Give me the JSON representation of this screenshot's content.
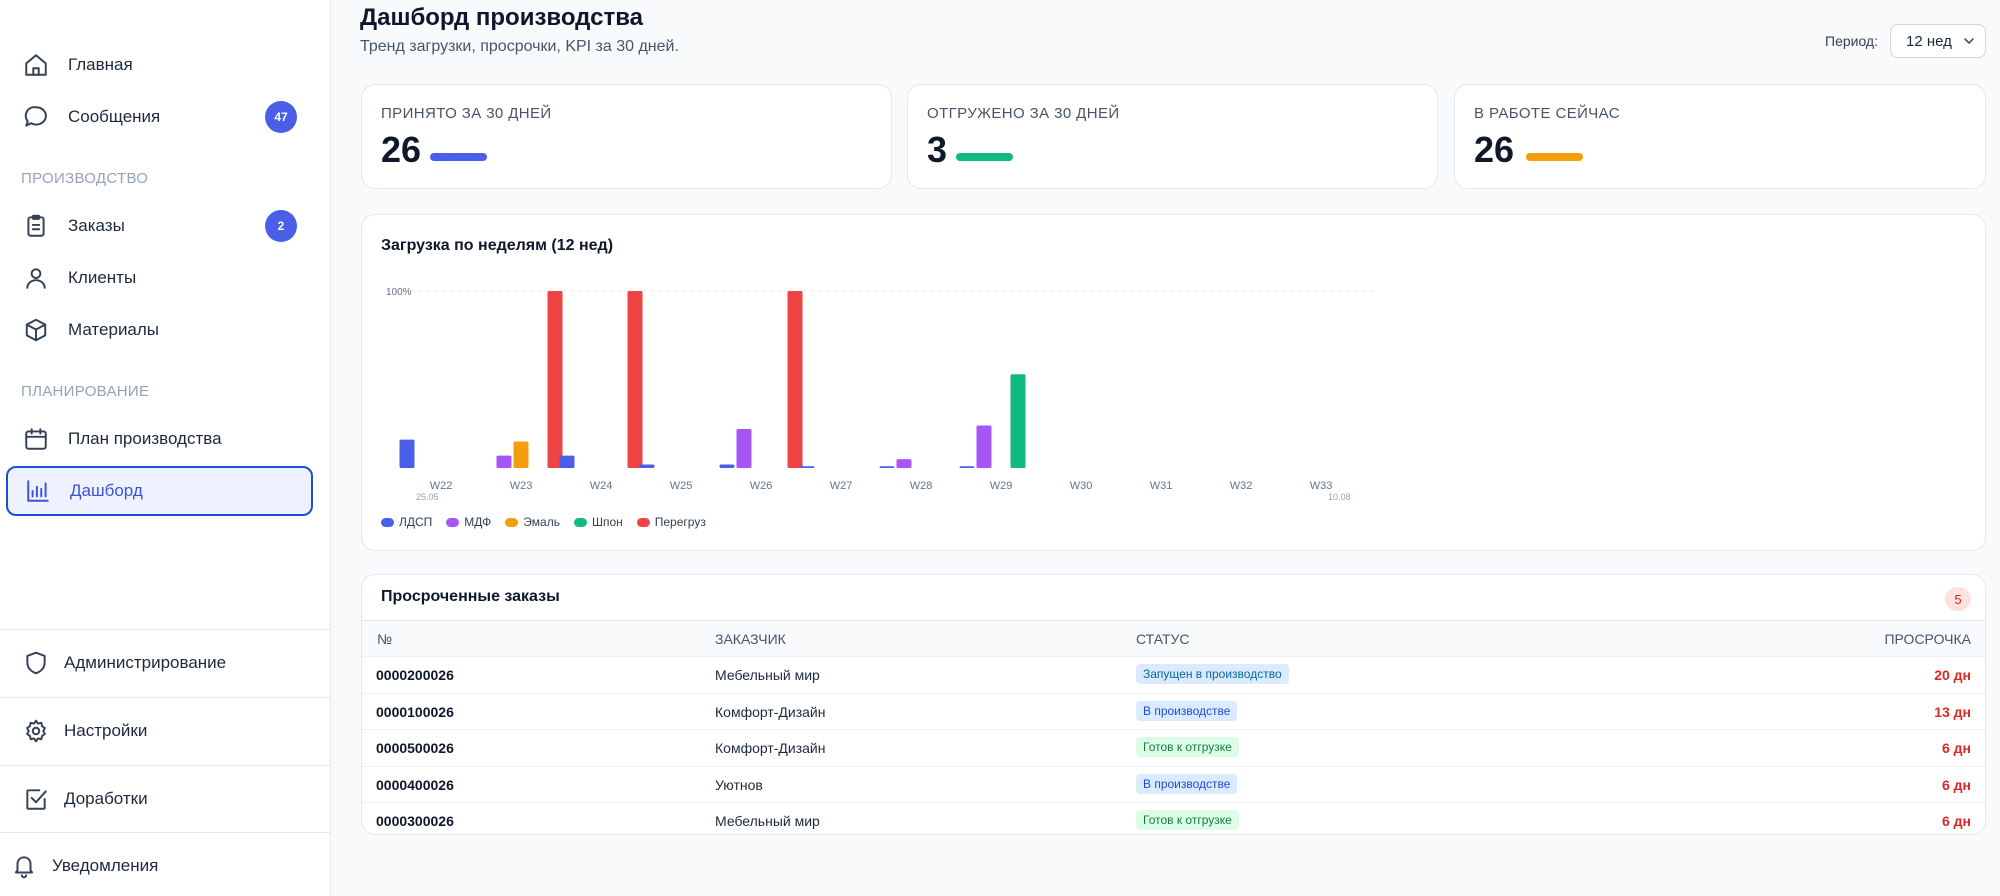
{
  "sidebar": {
    "top_items": [
      {
        "label": "Главная",
        "icon": "home-icon"
      },
      {
        "label": "Сообщения",
        "icon": "chat-icon",
        "badge": "47"
      }
    ],
    "sections": [
      {
        "title": "ПРОИЗВОДСТВО",
        "items": [
          {
            "label": "Заказы",
            "icon": "clipboard-icon",
            "badge": "2"
          },
          {
            "label": "Клиенты",
            "icon": "user-icon"
          },
          {
            "label": "Материалы",
            "icon": "cube-icon"
          }
        ]
      },
      {
        "title": "ПЛАНИРОВАНИЕ",
        "items": [
          {
            "label": "План производства",
            "icon": "calendar-icon"
          },
          {
            "label": "Дашборд",
            "icon": "bar-chart-icon",
            "active": true
          }
        ]
      }
    ],
    "bottom_items": [
      {
        "label": "Администрирование",
        "icon": "shield-icon"
      },
      {
        "label": "Настройки",
        "icon": "gear-icon"
      },
      {
        "label": "Доработки",
        "icon": "checkbox-icon"
      },
      {
        "label": "Уведомления",
        "icon": "bell-icon"
      }
    ]
  },
  "header": {
    "title": "Дашборд производства",
    "subtitle": "Тренд загрузки, просрочки, KPI за 30 дней.",
    "period_label": "Период:",
    "period_value": "12 нед"
  },
  "kpis": [
    {
      "label": "ПРИНЯТО ЗА 30 ДНЕЙ",
      "value": "26",
      "color": "#4a5ee8"
    },
    {
      "label": "ОТГРУЖЕНО ЗА 30 ДНЕЙ",
      "value": "3",
      "color": "#10b981"
    },
    {
      "label": "В РАБОТЕ СЕЙЧАС",
      "value": "26",
      "color": "#f59e0b"
    }
  ],
  "chart_data": {
    "type": "bar",
    "title": "Загрузка по неделям (12 нед)",
    "y_tick_label": "100%",
    "ylim": [
      0,
      100
    ],
    "categories": [
      "W22",
      "W23",
      "W24",
      "W25",
      "W26",
      "W27",
      "W28",
      "W29",
      "W30",
      "W31",
      "W32",
      "W33"
    ],
    "date_labels": {
      "start": "25.05",
      "end": "10.08"
    },
    "series": [
      {
        "name": "ЛДСП",
        "color": "#4a5ee8",
        "values": [
          16,
          0,
          7,
          2,
          2,
          1,
          1,
          1,
          0,
          0,
          0,
          0
        ]
      },
      {
        "name": "МДФ",
        "color": "#a855f7",
        "values": [
          0,
          7,
          0,
          0,
          22,
          0,
          5,
          24,
          0,
          0,
          0,
          0
        ]
      },
      {
        "name": "Эмаль",
        "color": "#f59e0b",
        "values": [
          0,
          15,
          0,
          0,
          0,
          0,
          0,
          0,
          0,
          0,
          0,
          0
        ]
      },
      {
        "name": "Шпон",
        "color": "#10b981",
        "values": [
          0,
          0,
          0,
          0,
          0,
          0,
          0,
          53,
          0,
          0,
          0,
          0
        ]
      },
      {
        "name": "Перегруз",
        "color": "#ef4444",
        "values": [
          0,
          100,
          100,
          0,
          100,
          0,
          0,
          0,
          0,
          0,
          0,
          0
        ]
      }
    ],
    "grid": "dashed-100"
  },
  "overdue": {
    "title": "Просроченные заказы",
    "count": "5",
    "columns": [
      "№",
      "ЗАКАЗЧИК",
      "СТАТУС",
      "ПРОСРОЧКА"
    ],
    "rows": [
      {
        "num": "0000200026",
        "customer": "Мебельный мир",
        "status": "Запущен в производство",
        "status_type": "launched",
        "late": "20 дн"
      },
      {
        "num": "0000100026",
        "customer": "Комфорт-Дизайн",
        "status": "В производстве",
        "status_type": "inprod",
        "late": "13 дн"
      },
      {
        "num": "0000500026",
        "customer": "Комфорт-Дизайн",
        "status": "Готов к отгрузке",
        "status_type": "ready",
        "late": "6 дн"
      },
      {
        "num": "0000400026",
        "customer": "Уютнов",
        "status": "В производстве",
        "status_type": "inprod",
        "late": "6 дн"
      },
      {
        "num": "0000300026",
        "customer": "Мебельный мир",
        "status": "Готов к отгрузке",
        "status_type": "ready",
        "late": "6 дн"
      }
    ]
  }
}
